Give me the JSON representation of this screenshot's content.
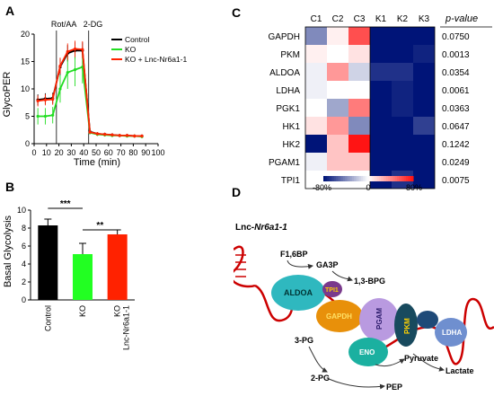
{
  "panels": {
    "a": "A",
    "b": "B",
    "c": "C",
    "d": "D"
  },
  "colors": {
    "control": "#000000",
    "ko": "#22dd22",
    "rescue": "#ff2200"
  },
  "chart_data": [
    {
      "type": "line",
      "panel": "A",
      "ylabel": "GlycoPER",
      "xlabel": "Time (min)",
      "xlim": [
        0,
        100
      ],
      "ylim": [
        0,
        20
      ],
      "xticks": [
        0,
        10,
        20,
        30,
        40,
        50,
        60,
        70,
        80,
        90,
        100
      ],
      "yticks": [
        0,
        5,
        10,
        15,
        20
      ],
      "annotations": [
        {
          "text": "Rot/AA",
          "x": 18
        },
        {
          "text": "2-DG",
          "x": 44
        }
      ],
      "legend_position": "top-right",
      "x": [
        3,
        9,
        15,
        21,
        27,
        33,
        39,
        45,
        51,
        57,
        63,
        69,
        75,
        81,
        87
      ],
      "series": [
        {
          "name": "Control",
          "color": "#000000",
          "values": [
            8,
            8.2,
            8.3,
            14,
            16.5,
            17,
            17,
            2.2,
            1.8,
            1.7,
            1.6,
            1.5,
            1.5,
            1.4,
            1.4
          ],
          "err": [
            1,
            1,
            1,
            1.5,
            1.5,
            1.5,
            1.5,
            0.3,
            0.3,
            0.3,
            0.3,
            0.3,
            0.3,
            0.3,
            0.3
          ]
        },
        {
          "name": "KO",
          "color": "#22dd22",
          "values": [
            5,
            5,
            5.2,
            10,
            13,
            13.5,
            14,
            2,
            1.7,
            1.6,
            1.5,
            1.5,
            1.4,
            1.4,
            1.3
          ],
          "err": [
            1.5,
            1.5,
            1.5,
            2.5,
            3,
            3,
            3,
            0.3,
            0.3,
            0.3,
            0.3,
            0.3,
            0.3,
            0.3,
            0.3
          ]
        },
        {
          "name": "KO + Lnc-Nr6a1-1",
          "color": "#ff2200",
          "values": [
            7.8,
            8,
            8.1,
            14.2,
            16.8,
            17.3,
            17.2,
            2.1,
            1.8,
            1.7,
            1.6,
            1.5,
            1.5,
            1.4,
            1.4
          ],
          "err": [
            1,
            1,
            1,
            1.5,
            1.5,
            1.5,
            1.5,
            0.3,
            0.3,
            0.3,
            0.3,
            0.3,
            0.3,
            0.3,
            0.3
          ]
        }
      ]
    },
    {
      "type": "bar",
      "panel": "B",
      "ylabel": "Basal Glycolysis",
      "ylim": [
        0,
        10
      ],
      "yticks": [
        0,
        2,
        4,
        6,
        8,
        10
      ],
      "categories": [
        "Control",
        "KO",
        "KO\nLnc-Nr6a1-1"
      ],
      "values": [
        8.3,
        5.1,
        7.3
      ],
      "err": [
        0.7,
        1.2,
        0.5
      ],
      "colors": [
        "#000000",
        "#22ff22",
        "#ff2200"
      ],
      "significance": [
        {
          "from": 0,
          "to": 1,
          "label": "***"
        },
        {
          "from": 1,
          "to": 2,
          "label": "**"
        }
      ]
    },
    {
      "type": "heatmap",
      "panel": "C",
      "columns": [
        "C1",
        "C2",
        "C3",
        "K1",
        "K2",
        "K3"
      ],
      "rows": [
        "GAPDH",
        "PKM",
        "ALDOA",
        "LDHA",
        "PGK1",
        "HK1",
        "HK2",
        "PGAM1",
        "TPI1"
      ],
      "values": [
        [
          -40,
          5,
          60,
          -90,
          -80,
          -85
        ],
        [
          5,
          0,
          10,
          -85,
          -90,
          -75
        ],
        [
          -5,
          35,
          -15,
          -70,
          -70,
          -90
        ],
        [
          -5,
          0,
          0,
          -85,
          -75,
          -90
        ],
        [
          0,
          -30,
          45,
          -90,
          -75,
          -80
        ],
        [
          10,
          35,
          -40,
          -90,
          -80,
          -65
        ],
        [
          -85,
          20,
          80,
          -90,
          -90,
          -90
        ],
        [
          -5,
          20,
          20,
          -90,
          -90,
          -90
        ],
        [
          0,
          0,
          0,
          -90,
          -70,
          -90
        ]
      ],
      "pvalue_header": "p-value",
      "pvalues": [
        "0.0750",
        "0.0013",
        "0.0354",
        "0.0061",
        "0.0363",
        "0.0647",
        "0.1242",
        "0.0249",
        "0.0075"
      ],
      "colorbar": {
        "labels": [
          "-80%",
          "0",
          "80%"
        ],
        "range": [
          -80,
          80
        ]
      }
    }
  ],
  "diagram": {
    "lnc_label": "Lnc-Nr6a1-1",
    "lnc_prefix": "Lnc-",
    "lnc_italic": "Nr6a1-1",
    "metabolites": [
      "F1,6BP",
      "GA3P",
      "1,3-BPG",
      "3-PG",
      "2-PG",
      "PEP",
      "Pyruvate",
      "Lactate"
    ],
    "enzymes": [
      "ALDOA",
      "TPI1",
      "GAPDH",
      "PGAM",
      "PKM",
      "LDHA",
      "ENO"
    ]
  }
}
